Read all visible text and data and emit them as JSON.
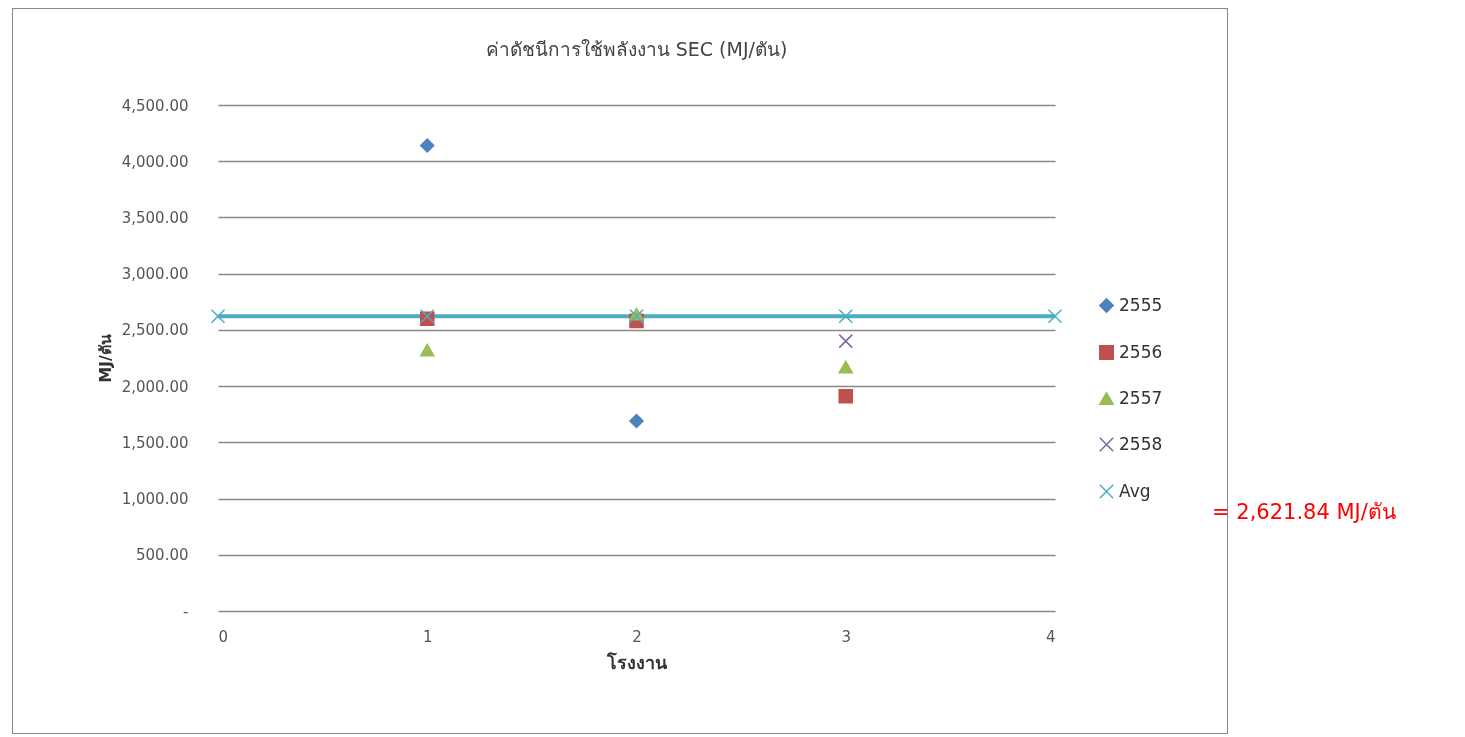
{
  "chart_data": {
    "type": "scatter",
    "title": "ค่าดัชนีการใช้พลังงาน  SEC (MJ/ตัน)",
    "xlabel": "โรงงาน",
    "ylabel": "MJ/ตัน",
    "xlim": [
      0,
      4
    ],
    "xticks": [
      0,
      1,
      2,
      3,
      4
    ],
    "ylim": [
      0,
      4500
    ],
    "yticks": [
      {
        "value": 0,
        "label": "-"
      },
      {
        "value": 500,
        "label": "500.00"
      },
      {
        "value": 1000,
        "label": "1,000.00"
      },
      {
        "value": 1500,
        "label": "1,500.00"
      },
      {
        "value": 2000,
        "label": "2,000.00"
      },
      {
        "value": 2500,
        "label": "2,500.00"
      },
      {
        "value": 3000,
        "label": "3,000.00"
      },
      {
        "value": 3500,
        "label": "3,500.00"
      },
      {
        "value": 4000,
        "label": "4,000.00"
      },
      {
        "value": 4500,
        "label": "4,500.00"
      }
    ],
    "grid": "y",
    "legend": "right",
    "series": [
      {
        "name": "2555",
        "color": "#4f81bd",
        "marker": "diamond",
        "x": [
          1,
          2
        ],
        "values": [
          4140,
          1690
        ]
      },
      {
        "name": "2556",
        "color": "#c0504d",
        "marker": "square",
        "x": [
          1,
          2,
          3
        ],
        "values": [
          2600,
          2580,
          1910
        ]
      },
      {
        "name": "2557",
        "color": "#9bbb59",
        "marker": "triangle",
        "x": [
          1,
          2,
          3
        ],
        "values": [
          2320,
          2640,
          2170
        ]
      },
      {
        "name": "2558",
        "color": "#8064a2",
        "marker": "cross",
        "x": [
          3
        ],
        "values": [
          2400
        ]
      },
      {
        "name": "Avg",
        "type": "line",
        "color": "#4bacc6",
        "marker": "cross",
        "x": [
          0,
          1,
          2,
          3,
          4
        ],
        "values": [
          2621.84,
          2621.84,
          2621.84,
          2621.84,
          2621.84
        ]
      }
    ],
    "annotations": [
      "= 2,621.84 MJ/ตัน"
    ]
  }
}
